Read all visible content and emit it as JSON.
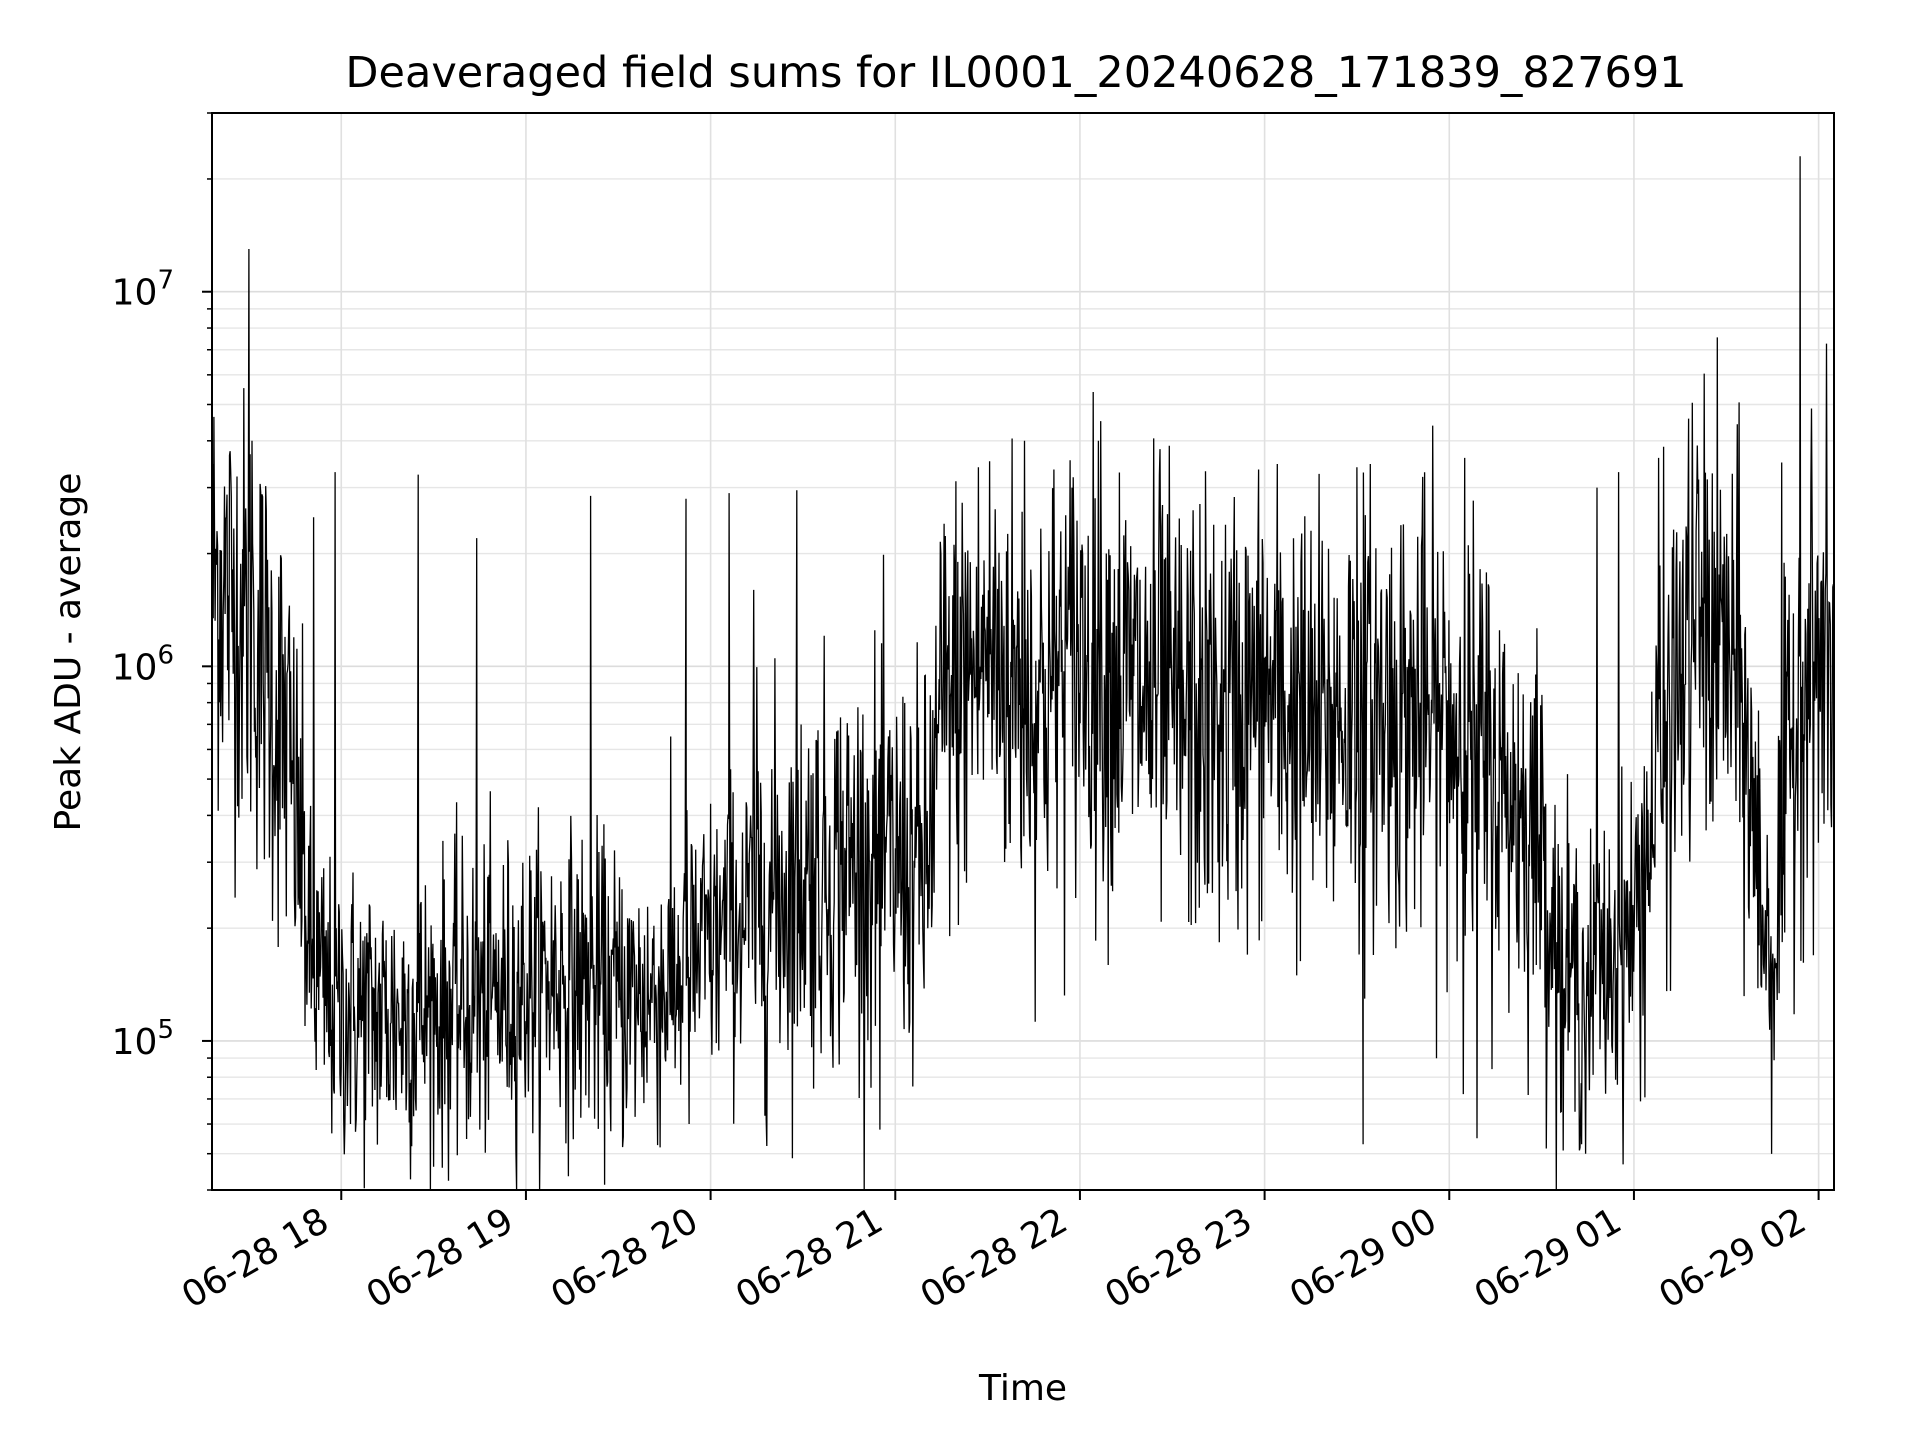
{
  "chart_data": {
    "type": "line",
    "title": "Deaveraged field sums for IL0001_20240628_171839_827691",
    "xlabel": "Time",
    "ylabel": "Peak ADU - average",
    "x_axis_type": "datetime",
    "x_ticks": [
      "06-28 18",
      "06-28 19",
      "06-28 20",
      "06-28 21",
      "06-28 22",
      "06-28 23",
      "06-29 00",
      "06-29 01",
      "06-29 02"
    ],
    "xlim": [
      "2024-06-28 17:18",
      "2024-06-29 02:05"
    ],
    "y_scale": "log",
    "ylim": [
      40000,
      30000000
    ],
    "y_ticks": [
      {
        "value": 100000,
        "base": "10",
        "exp": "5"
      },
      {
        "value": 1000000,
        "base": "10",
        "exp": "6"
      },
      {
        "value": 10000000,
        "base": "10",
        "exp": "7"
      }
    ],
    "grid": true,
    "line_color": "#000000",
    "series": [
      {
        "x": [
          "2024-06-28 17:18",
          "2024-06-28 17:25",
          "2024-06-28 17:30",
          "2024-06-28 17:36",
          "2024-06-28 17:42",
          "2024-06-28 17:47",
          "2024-06-28 17:50",
          "2024-06-28 17:55",
          "2024-06-28 18:00",
          "2024-06-28 18:10",
          "2024-06-28 18:20",
          "2024-06-28 18:30",
          "2024-06-28 18:40",
          "2024-06-28 18:50",
          "2024-06-28 19:00",
          "2024-06-28 19:10",
          "2024-06-28 19:20",
          "2024-06-28 19:30",
          "2024-06-28 19:40",
          "2024-06-28 19:50",
          "2024-06-28 20:00",
          "2024-06-28 20:15",
          "2024-06-28 20:30",
          "2024-06-28 20:45",
          "2024-06-28 21:00",
          "2024-06-28 21:10",
          "2024-06-28 21:15",
          "2024-06-28 21:30",
          "2024-06-28 21:45",
          "2024-06-28 22:00",
          "2024-06-28 22:15",
          "2024-06-28 22:30",
          "2024-06-28 22:45",
          "2024-06-28 23:00",
          "2024-06-28 23:15",
          "2024-06-28 23:30",
          "2024-06-28 23:45",
          "2024-06-29 00:00",
          "2024-06-29 00:15",
          "2024-06-29 00:30",
          "2024-06-29 00:35",
          "2024-06-29 00:45",
          "2024-06-29 01:00",
          "2024-06-29 01:10",
          "2024-06-29 01:20",
          "2024-06-29 01:25",
          "2024-06-29 01:30",
          "2024-06-29 01:35",
          "2024-06-29 01:40",
          "2024-06-29 01:45",
          "2024-06-29 01:50",
          "2024-06-29 01:55",
          "2024-06-29 02:00",
          "2024-06-29 02:05"
        ],
        "y": [
          1800000,
          1500000,
          1300000,
          950000,
          620000,
          320000,
          160000,
          130000,
          120000,
          115000,
          115000,
          120000,
          125000,
          130000,
          140000,
          150000,
          140000,
          130000,
          130000,
          150000,
          180000,
          230000,
          280000,
          300000,
          300000,
          280000,
          750000,
          1100000,
          800000,
          1100000,
          900000,
          750000,
          700000,
          850000,
          650000,
          800000,
          750000,
          700000,
          500000,
          350000,
          170000,
          130000,
          200000,
          600000,
          1400000,
          1200000,
          1100000,
          800000,
          300000,
          150000,
          500000,
          1000000,
          1000000,
          950000
        ]
      }
    ],
    "peaks": [
      {
        "x": "2024-06-28 17:30",
        "y": 13000000
      },
      {
        "x": "2024-06-28 17:31",
        "y": 4000000
      },
      {
        "x": "2024-06-28 17:51",
        "y": 2500000
      },
      {
        "x": "2024-06-28 17:58",
        "y": 3300000
      },
      {
        "x": "2024-06-28 18:25",
        "y": 3250000
      },
      {
        "x": "2024-06-28 18:44",
        "y": 2200000
      },
      {
        "x": "2024-06-28 19:21",
        "y": 2850000
      },
      {
        "x": "2024-06-28 19:52",
        "y": 2800000
      },
      {
        "x": "2024-06-28 20:06",
        "y": 2900000
      },
      {
        "x": "2024-06-28 20:14",
        "y": 1600000
      },
      {
        "x": "2024-06-28 20:28",
        "y": 2950000
      },
      {
        "x": "2024-06-28 21:42",
        "y": 4000000
      },
      {
        "x": "2024-06-28 22:06",
        "y": 4000000
      },
      {
        "x": "2024-06-28 22:26",
        "y": 3800000
      },
      {
        "x": "2024-06-28 23:30",
        "y": 3400000
      },
      {
        "x": "2024-06-29 00:05",
        "y": 3600000
      },
      {
        "x": "2024-06-29 00:48",
        "y": 3000000
      },
      {
        "x": "2024-06-29 00:55",
        "y": 3300000
      },
      {
        "x": "2024-06-29 01:08",
        "y": 3600000
      },
      {
        "x": "2024-06-29 01:48",
        "y": 3500000
      },
      {
        "x": "2024-06-29 01:54",
        "y": 23000000
      }
    ],
    "dips": [
      {
        "x": "2024-06-28 18:03",
        "y": 60000
      },
      {
        "x": "2024-06-28 18:45",
        "y": 58000
      },
      {
        "x": "2024-06-28 19:53",
        "y": 60000
      },
      {
        "x": "2024-06-28 20:55",
        "y": 58000
      },
      {
        "x": "2024-06-28 23:32",
        "y": 53000
      },
      {
        "x": "2024-06-29 00:09",
        "y": 55000
      },
      {
        "x": "2024-06-29 00:37",
        "y": 51000
      },
      {
        "x": "2024-06-29 00:43",
        "y": 53000
      }
    ]
  }
}
